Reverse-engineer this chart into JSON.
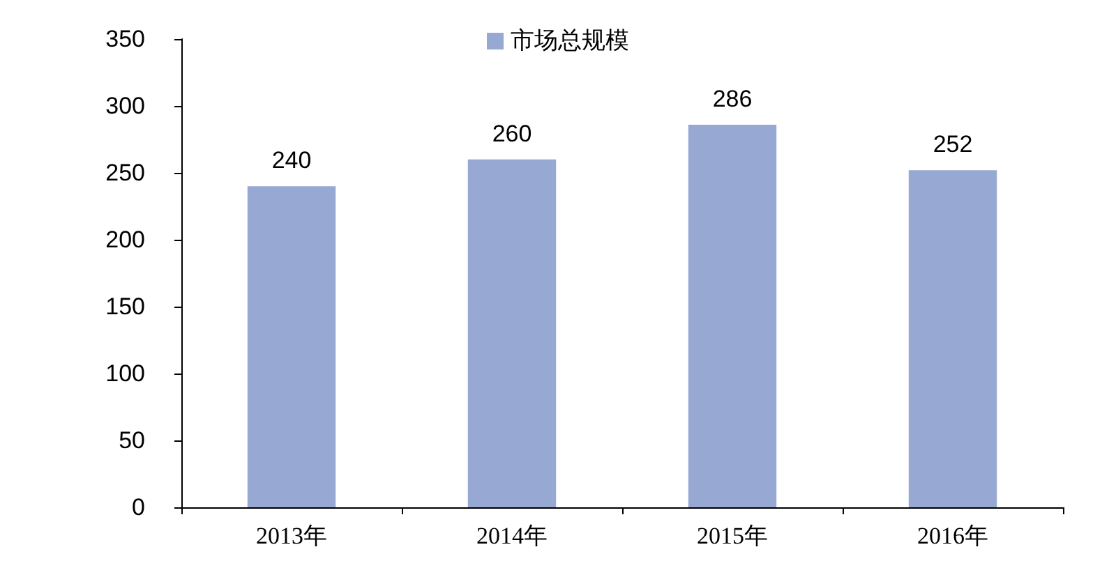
{
  "chart_data": {
    "type": "bar",
    "categories": [
      "2013年",
      "2014年",
      "2015年",
      "2016年"
    ],
    "series": [
      {
        "name": "市场总规模",
        "color": "#97a8d2",
        "values": [
          240,
          260,
          286,
          252
        ]
      }
    ],
    "ylim": [
      0,
      350
    ],
    "yticks": [
      0,
      50,
      100,
      150,
      200,
      250,
      300,
      350
    ],
    "grid": false,
    "legend": "top",
    "data_labels": true
  }
}
